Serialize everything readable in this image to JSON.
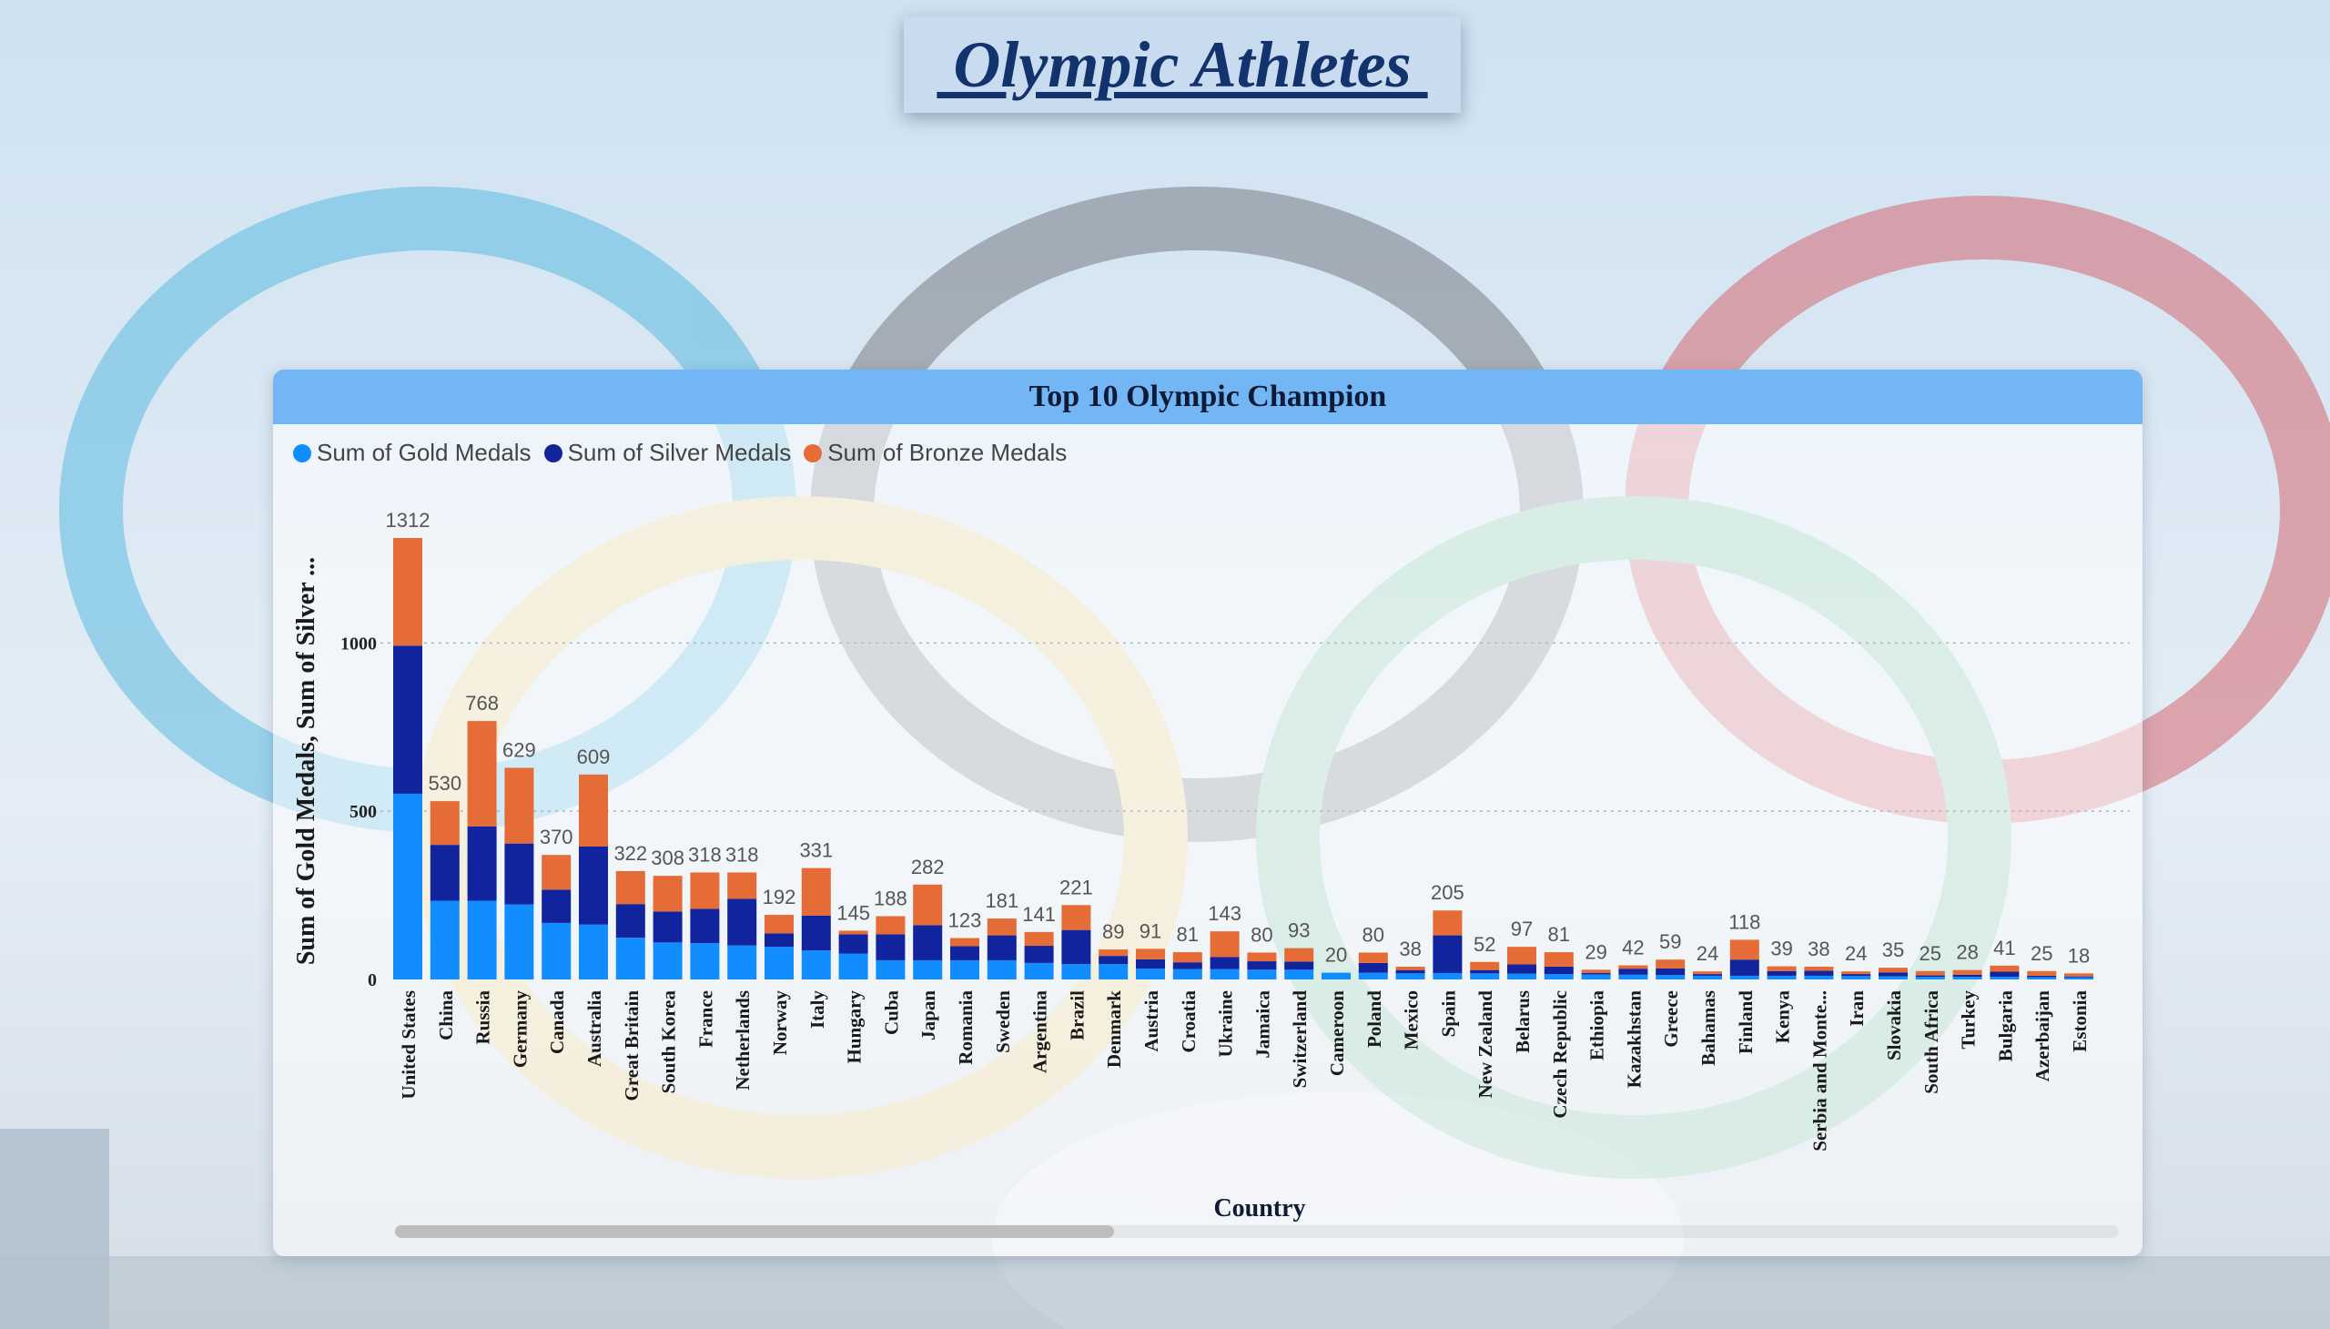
{
  "page_title": " Olympic Athletes ",
  "panel": {
    "title": "Top 10 Olympic Champion"
  },
  "colors": {
    "gold": "#118dff",
    "silver": "#12239e",
    "bronze": "#e66c37",
    "header": "#73b6f6"
  },
  "chart_data": {
    "type": "bar",
    "stacked": true,
    "xlabel": "Country",
    "ylabel": "Sum of Gold Medals, Sum of Silver ...",
    "ylim": [
      0,
      1312
    ],
    "yticks": [
      0,
      500,
      1000
    ],
    "grid": true,
    "legend_position": "top-left",
    "categories": [
      "United States",
      "China",
      "Russia",
      "Germany",
      "Canada",
      "Australia",
      "Great Britain",
      "South Korea",
      "France",
      "Netherlands",
      "Norway",
      "Italy",
      "Hungary",
      "Cuba",
      "Japan",
      "Romania",
      "Sweden",
      "Argentina",
      "Brazil",
      "Denmark",
      "Austria",
      "Croatia",
      "Ukraine",
      "Jamaica",
      "Switzerland",
      "Cameroon",
      "Poland",
      "Mexico",
      "Spain",
      "New Zealand",
      "Belarus",
      "Czech Republic",
      "Ethiopia",
      "Kazakhstan",
      "Greece",
      "Bahamas",
      "Finland",
      "Kenya",
      "Serbia and Monte...",
      "Iran",
      "Slovakia",
      "South Africa",
      "Turkey",
      "Bulgaria",
      "Azerbaijan",
      "Estonia"
    ],
    "totals": [
      1312,
      530,
      768,
      629,
      370,
      609,
      322,
      308,
      318,
      318,
      192,
      331,
      145,
      188,
      282,
      123,
      181,
      141,
      221,
      89,
      91,
      81,
      143,
      80,
      93,
      20,
      80,
      38,
      205,
      52,
      97,
      81,
      29,
      42,
      59,
      24,
      118,
      39,
      38,
      24,
      35,
      25,
      28,
      41,
      25,
      18
    ],
    "series": [
      {
        "name": "Sum of Gold Medals",
        "values": [
          552,
          234,
          234,
          223,
          168,
          163,
          124,
          110,
          108,
          101,
          97,
          86,
          77,
          57,
          57,
          57,
          57,
          49,
          46,
          46,
          32,
          31,
          31,
          29,
          29,
          20,
          20,
          18,
          19,
          18,
          17,
          16,
          15,
          14,
          13,
          11,
          11,
          11,
          11,
          10,
          9,
          8,
          8,
          8,
          7,
          6
        ]
      },
      {
        "name": "Sum of Silver Medals",
        "values": [
          440,
          166,
          221,
          181,
          99,
          232,
          100,
          92,
          102,
          139,
          40,
          104,
          57,
          77,
          104,
          42,
          74,
          51,
          101,
          24,
          28,
          20,
          36,
          25,
          24,
          0,
          29,
          10,
          112,
          10,
          28,
          22,
          4,
          18,
          20,
          5,
          48,
          14,
          15,
          6,
          12,
          4,
          6,
          15,
          4,
          3
        ]
      },
      {
        "name": "Sum of Bronze Medals",
        "values": [
          320,
          130,
          313,
          225,
          103,
          214,
          98,
          106,
          108,
          78,
          55,
          141,
          11,
          54,
          121,
          24,
          50,
          41,
          74,
          19,
          31,
          30,
          76,
          26,
          40,
          0,
          31,
          10,
          74,
          24,
          52,
          43,
          10,
          10,
          26,
          8,
          59,
          14,
          12,
          8,
          14,
          13,
          14,
          18,
          14,
          9
        ]
      }
    ]
  }
}
